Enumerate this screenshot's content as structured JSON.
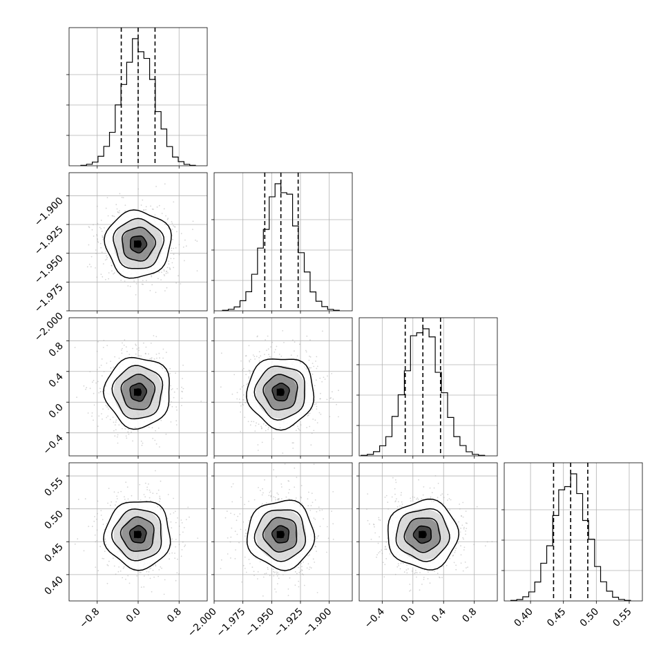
{
  "chart_data": {
    "type": "corner",
    "description_free": true,
    "parameters": [
      {
        "index": 0,
        "xlabel": "",
        "range": [
          -1.35,
          1.35
        ],
        "ticks": [
          -0.8,
          0.0,
          0.8
        ],
        "tick_labels": [
          "−0.8",
          "0.0",
          "0.8"
        ],
        "quantiles": [
          -0.33,
          0.0,
          0.33
        ],
        "mean": 0.0,
        "sigma": 0.32
      },
      {
        "index": 1,
        "xlabel": "",
        "range": [
          -2.0,
          -1.88
        ],
        "ticks": [
          -2.0,
          -1.975,
          -1.95,
          -1.925,
          -1.9
        ],
        "tick_labels": [
          "−2.000",
          "−1.975",
          "−1.950",
          "−1.925",
          "−1.900"
        ],
        "quantiles": [
          -1.956,
          -1.942,
          -1.927
        ],
        "mean": -1.942,
        "sigma": 0.0145
      },
      {
        "index": 2,
        "xlabel": "",
        "range": [
          -0.7,
          1.1
        ],
        "ticks": [
          -0.4,
          0.0,
          0.4,
          0.8
        ],
        "tick_labels": [
          "−0.4",
          "0.0",
          "0.4",
          "0.8"
        ],
        "quantiles": [
          -0.1,
          0.13,
          0.36
        ],
        "mean": 0.13,
        "sigma": 0.23
      },
      {
        "index": 3,
        "xlabel": "",
        "range": [
          0.36,
          0.57
        ],
        "ticks": [
          0.4,
          0.45,
          0.5,
          0.55
        ],
        "tick_labels": [
          "0.40",
          "0.45",
          "0.50",
          "0.55"
        ],
        "quantiles": [
          0.435,
          0.461,
          0.487
        ],
        "mean": 0.461,
        "sigma": 0.026
      }
    ],
    "row_axis_ticks": {
      "1": {
        "ticks": [
          -2.0,
          -1.975,
          -1.95,
          -1.925,
          -1.9
        ],
        "tick_labels": [
          "−2.000",
          "−1.975",
          "−1.950",
          "−1.925",
          "−1.900"
        ]
      },
      "2": {
        "ticks": [
          -0.4,
          0.0,
          0.4,
          0.8
        ],
        "tick_labels": [
          "−0.4",
          "0.0",
          "0.4",
          "0.8"
        ]
      },
      "3": {
        "ticks": [
          0.4,
          0.45,
          0.5,
          0.55
        ],
        "tick_labels": [
          "0.40",
          "0.45",
          "0.50",
          "0.55"
        ]
      }
    },
    "contour_levels_sigma": [
      0.5,
      1.0,
      1.5,
      2.0
    ],
    "histogram_bins": 20,
    "grid": true,
    "title": "",
    "colors": {
      "hist": "#000000",
      "contour": "#000000",
      "density": "#000000",
      "points": "#a0a0a0",
      "grid": "#b0b0b0"
    }
  }
}
